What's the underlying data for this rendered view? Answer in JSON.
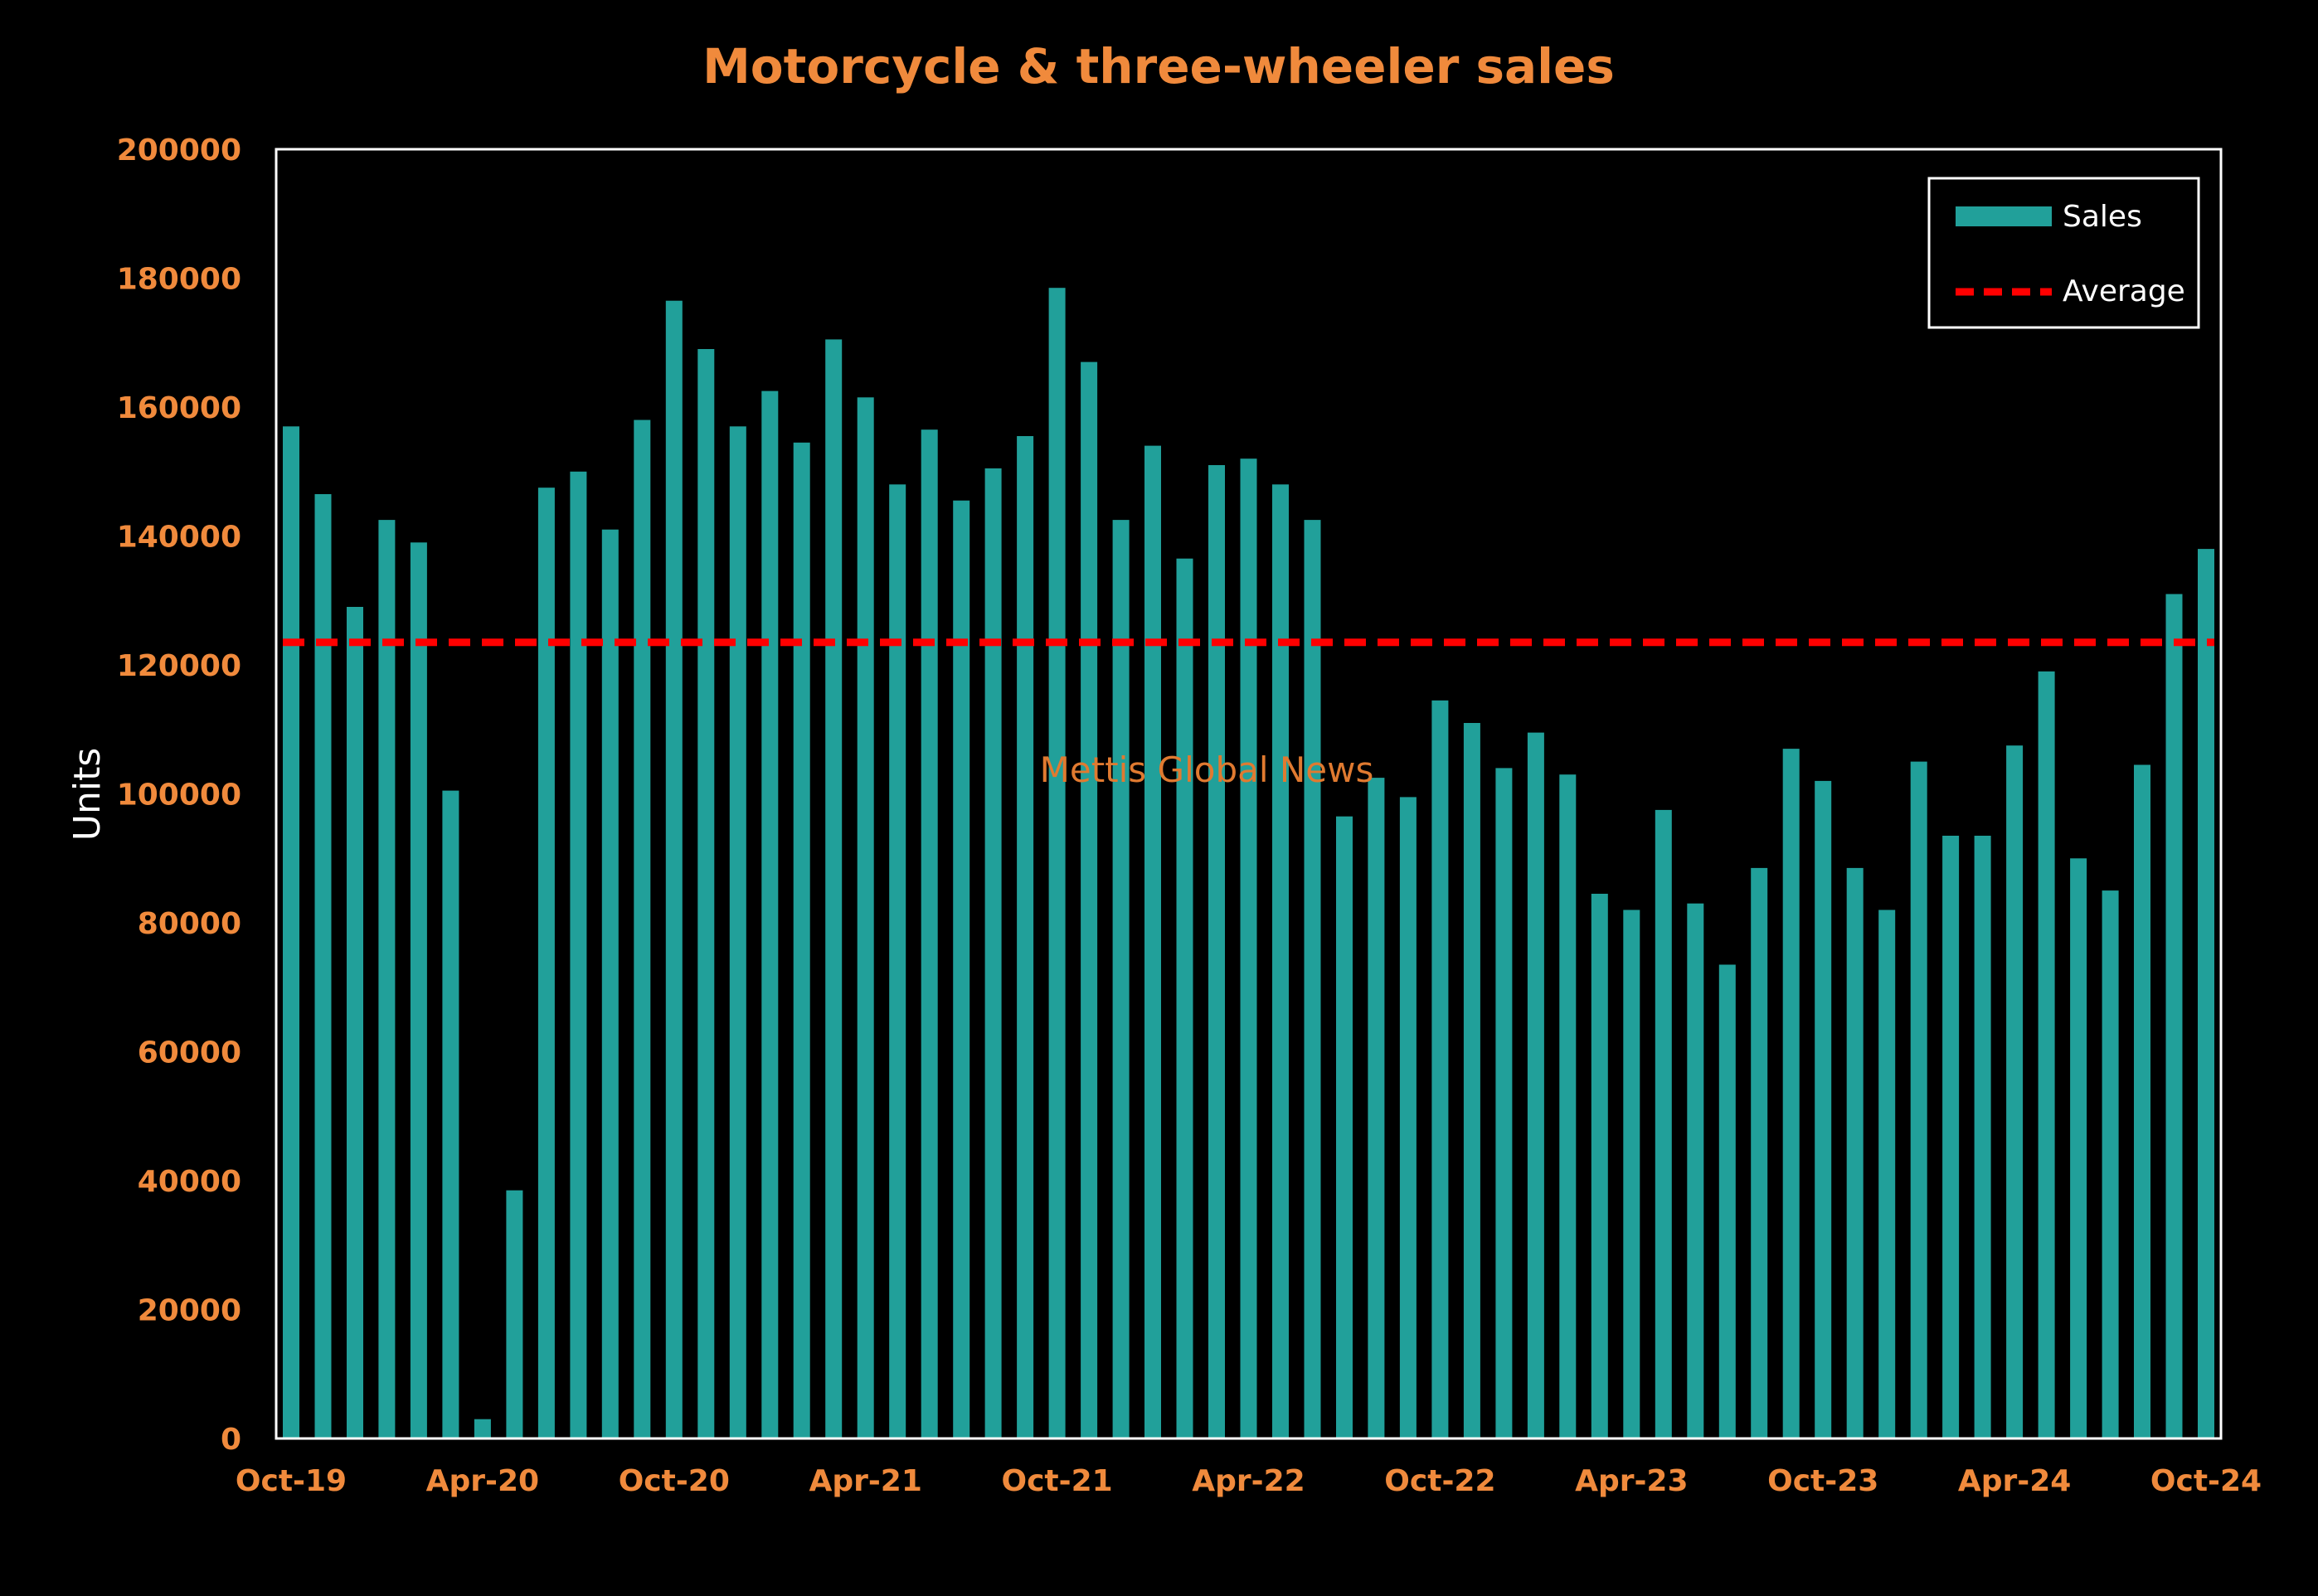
{
  "colors": {
    "background": "#000000",
    "bar": "#21A09A",
    "average_line": "#FF0000",
    "accent_text": "#F08A3C",
    "frame": "#FFFFFF",
    "watermark": "#E07A30"
  },
  "watermark": "Mettis Global News",
  "chart_data": {
    "type": "bar",
    "title": "Motorcycle & three-wheeler sales",
    "xlabel": "",
    "ylabel": "Units",
    "ylim": [
      0,
      200000
    ],
    "yticks": [
      "0",
      "20000",
      "40000",
      "60000",
      "80000",
      "100000",
      "120000",
      "140000",
      "160000",
      "180000",
      "200000"
    ],
    "xtick_labels": [
      "Oct-19",
      "Apr-20",
      "Oct-20",
      "Apr-21",
      "Oct-21",
      "Apr-22",
      "Oct-22",
      "Apr-23",
      "Oct-23",
      "Apr-24",
      "Oct-24"
    ],
    "xtick_every": 6,
    "legend_position": "top-right",
    "grid": false,
    "categories": [
      "Oct-19",
      "Nov-19",
      "Dec-19",
      "Jan-20",
      "Feb-20",
      "Mar-20",
      "Apr-20",
      "May-20",
      "Jun-20",
      "Jul-20",
      "Aug-20",
      "Sep-20",
      "Oct-20",
      "Nov-20",
      "Dec-20",
      "Jan-21",
      "Feb-21",
      "Mar-21",
      "Apr-21",
      "May-21",
      "Jun-21",
      "Jul-21",
      "Aug-21",
      "Sep-21",
      "Oct-21",
      "Nov-21",
      "Dec-21",
      "Jan-22",
      "Feb-22",
      "Mar-22",
      "Apr-22",
      "May-22",
      "Jun-22",
      "Jul-22",
      "Aug-22",
      "Sep-22",
      "Oct-22",
      "Nov-22",
      "Dec-22",
      "Jan-23",
      "Feb-23",
      "Mar-23",
      "Apr-23",
      "May-23",
      "Jun-23",
      "Jul-23",
      "Aug-23",
      "Sep-23",
      "Oct-23",
      "Nov-23",
      "Dec-23",
      "Jan-24",
      "Feb-24",
      "Mar-24",
      "Apr-24",
      "May-24",
      "Jun-24",
      "Jul-24",
      "Aug-24",
      "Sep-24",
      "Oct-24"
    ],
    "series": [
      {
        "name": "Sales",
        "type": "bar",
        "values": [
          157000,
          146500,
          129000,
          142500,
          139000,
          100500,
          3000,
          38500,
          147500,
          150000,
          141000,
          158000,
          176500,
          169000,
          157000,
          162500,
          154500,
          170500,
          161500,
          148000,
          156500,
          145500,
          150500,
          155500,
          178500,
          167000,
          142500,
          154000,
          136500,
          151000,
          152000,
          148000,
          142500,
          96500,
          102500,
          99500,
          114500,
          111000,
          104000,
          109500,
          103000,
          84500,
          82000,
          97500,
          83000,
          73500,
          88500,
          107000,
          102000,
          88500,
          82000,
          105000,
          93500,
          93500,
          107500,
          119000,
          90000,
          85000,
          104500,
          131000,
          138000
        ]
      },
      {
        "name": "Average",
        "type": "line",
        "value": 123500
      }
    ]
  }
}
